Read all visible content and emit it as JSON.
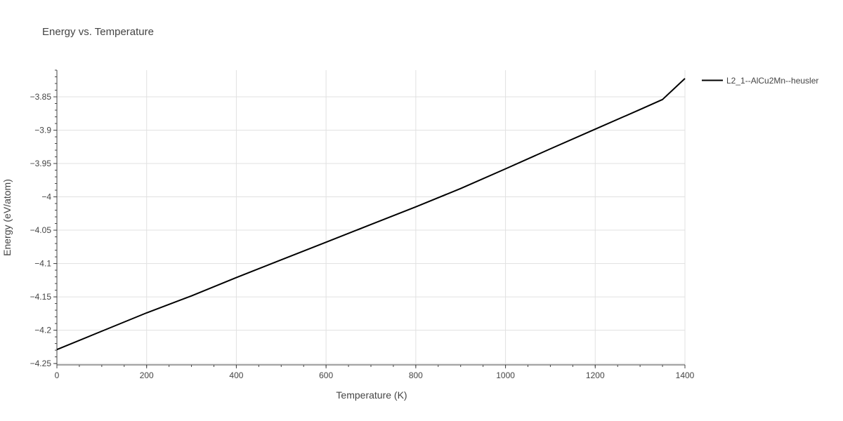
{
  "chart_data": {
    "type": "line",
    "title": "Energy vs. Temperature",
    "xlabel": "Temperature (K)",
    "ylabel": "Energy (eV/atom)",
    "xlim": [
      0,
      1400
    ],
    "ylim": [
      -4.252,
      -3.81
    ],
    "x_ticks": [
      0,
      200,
      400,
      600,
      800,
      1000,
      1200,
      1400
    ],
    "x_tick_labels": [
      "0",
      "200",
      "400",
      "600",
      "800",
      "1000",
      "1200",
      "1400"
    ],
    "y_ticks": [
      -4.25,
      -4.2,
      -4.15,
      -4.1,
      -4.05,
      -4.0,
      -3.95,
      -3.9,
      -3.85
    ],
    "y_tick_labels": [
      "−4.25",
      "−4.2",
      "−4.15",
      "−4.1",
      "−4.05",
      "−4",
      "−3.95",
      "−3.9",
      "−3.85"
    ],
    "grid": true,
    "legend_position": "top-right outside",
    "series": [
      {
        "name": "L2_1--AlCu2Mn--heusler",
        "color": "#000000",
        "x": [
          0,
          100,
          200,
          300,
          400,
          500,
          600,
          700,
          800,
          900,
          1000,
          1100,
          1200,
          1300,
          1350,
          1400
        ],
        "y": [
          -4.229,
          -4.2015,
          -4.174,
          -4.1485,
          -4.121,
          -4.0945,
          -4.068,
          -4.0415,
          -4.015,
          -3.9875,
          -3.958,
          -3.928,
          -3.8985,
          -3.869,
          -3.854,
          -3.8225
        ]
      }
    ]
  }
}
